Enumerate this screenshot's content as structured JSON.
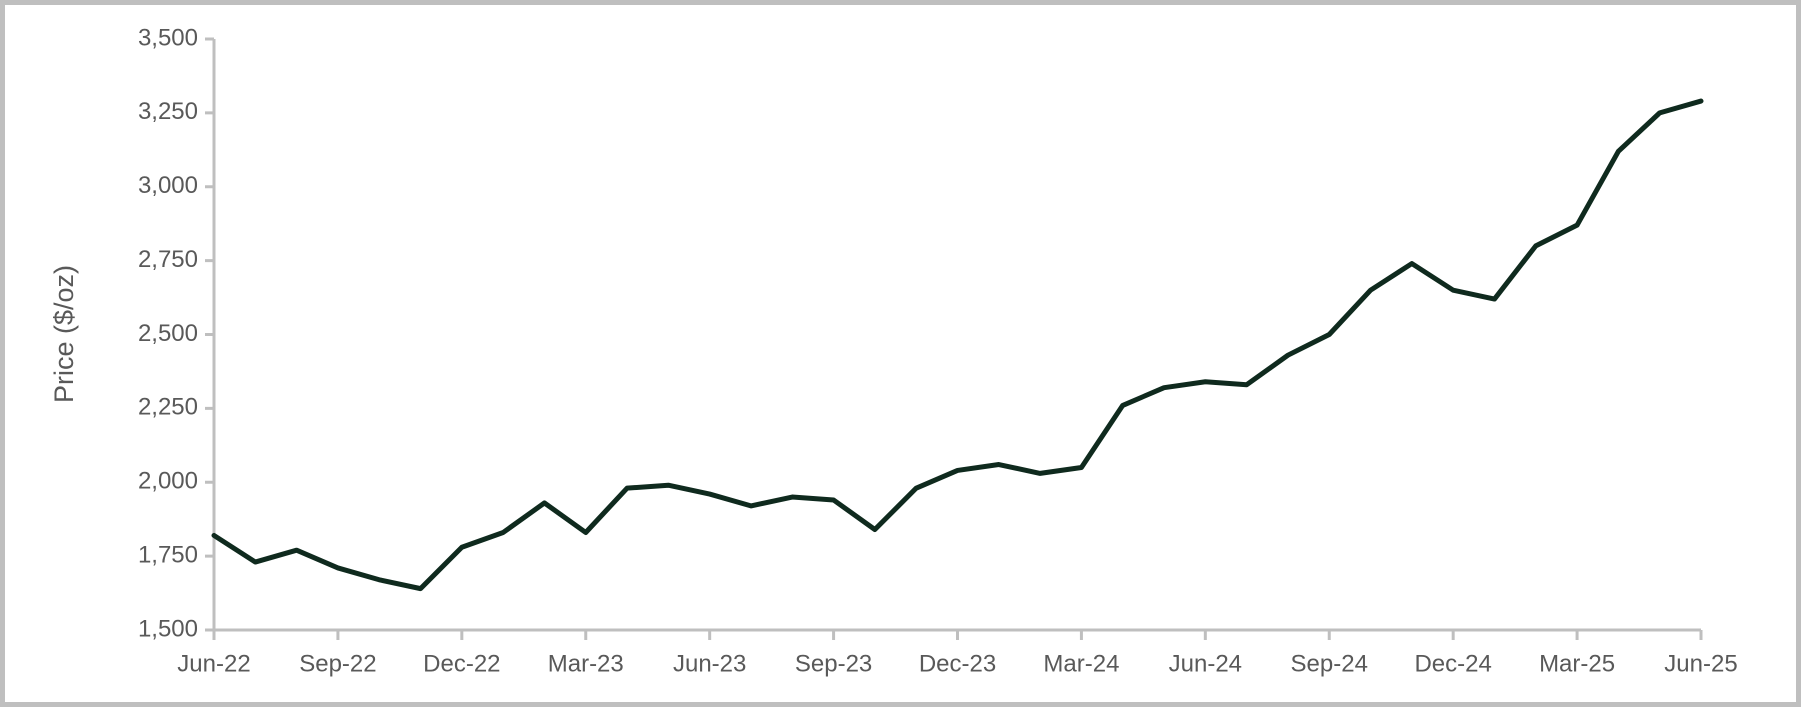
{
  "chart_data": {
    "type": "line",
    "y_label": "Price ($/oz)",
    "x": [
      "Jun-22",
      "Jul-22",
      "Aug-22",
      "Sep-22",
      "Oct-22",
      "Nov-22",
      "Dec-22",
      "Jan-23",
      "Feb-23",
      "Mar-23",
      "Apr-23",
      "May-23",
      "Jun-23",
      "Jul-23",
      "Aug-23",
      "Sep-23",
      "Oct-23",
      "Nov-23",
      "Dec-23",
      "Jan-24",
      "Feb-24",
      "Mar-24",
      "Apr-24",
      "May-24",
      "Jun-24",
      "Jul-24",
      "Aug-24",
      "Sep-24",
      "Oct-24",
      "Nov-24",
      "Dec-24",
      "Jan-25",
      "Feb-25",
      "Mar-25",
      "Apr-25",
      "May-25",
      "Jun-25"
    ],
    "series": [
      {
        "name": "Price",
        "color": "#0f2a1e",
        "values": [
          1820,
          1730,
          1770,
          1710,
          1670,
          1640,
          1780,
          1830,
          1930,
          1830,
          1980,
          1990,
          1960,
          1920,
          1950,
          1940,
          1840,
          1980,
          2040,
          2060,
          2030,
          2050,
          2260,
          2320,
          2340,
          2330,
          2430,
          2500,
          2650,
          2740,
          2650,
          2620,
          2800,
          2870,
          3120,
          3250,
          3290
        ]
      }
    ],
    "xtick_every": 3,
    "ylim": [
      1500,
      3500
    ],
    "yticks": [
      {
        "value": 1500,
        "label": "1,500"
      },
      {
        "value": 1750,
        "label": "1,750"
      },
      {
        "value": 2000,
        "label": "2,000"
      },
      {
        "value": 2250,
        "label": "2,250"
      },
      {
        "value": 2500,
        "label": "2,500"
      },
      {
        "value": 2750,
        "label": "2,750"
      },
      {
        "value": 3000,
        "label": "3,000"
      },
      {
        "value": 3250,
        "label": "3,250"
      },
      {
        "value": 3500,
        "label": "3,500"
      }
    ],
    "grid": false
  }
}
